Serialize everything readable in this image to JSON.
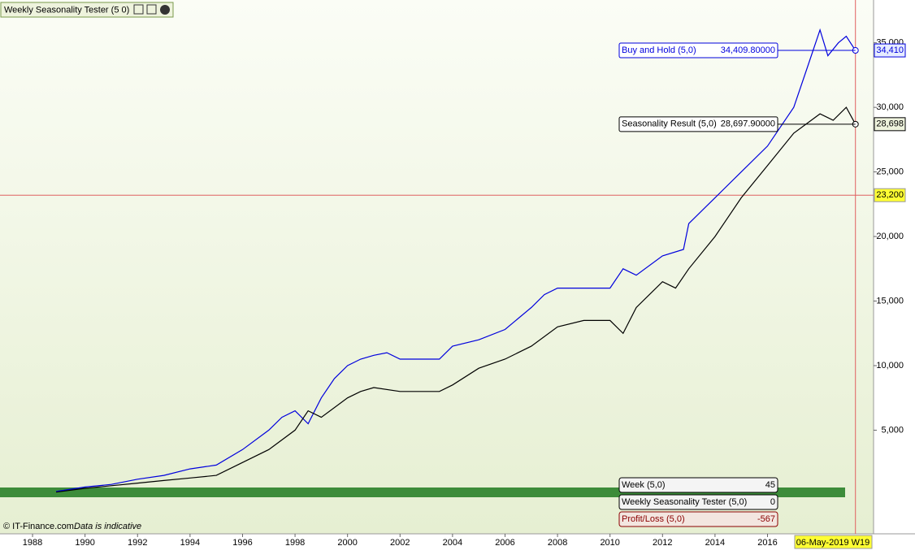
{
  "title": "Weekly Seasonality Tester (5 0)",
  "footer": {
    "copyright": "© IT-Finance.com",
    "note": "Data is indicative"
  },
  "chart_data": {
    "type": "line",
    "xlim": [
      1986.76,
      2020.04
    ],
    "ylim": [
      -2900,
      38000
    ],
    "xticks": [
      1988,
      1990,
      1992,
      1994,
      1996,
      1998,
      2000,
      2002,
      2004,
      2006,
      2008,
      2010,
      2012,
      2014,
      2016
    ],
    "yticks": [
      {
        "value": 5000,
        "label": "5,000"
      },
      {
        "value": 10000,
        "label": "10,000"
      },
      {
        "value": 15000,
        "label": "15,000"
      },
      {
        "value": 20000,
        "label": "20,000"
      },
      {
        "value": 25000,
        "label": "25,000"
      },
      {
        "value": 30000,
        "label": "30,000"
      },
      {
        "value": 35000,
        "label": "35,000"
      }
    ],
    "series": [
      {
        "name": "Buy and Hold (5,0)",
        "color": "#0000dd",
        "x": [
          1988.9,
          1990,
          1991,
          1992,
          1993,
          1994,
          1995,
          1996,
          1997,
          1997.5,
          1998,
          1998.5,
          1999,
          1999.5,
          2000,
          2000.5,
          2001,
          2001.5,
          2002,
          2003.5,
          2004,
          2005,
          2006,
          2007,
          2007.5,
          2008,
          2009,
          2010,
          2010.5,
          2011,
          2012,
          2012.8,
          2013,
          2014,
          2015,
          2016,
          2017,
          2017.5,
          2018,
          2018.3,
          2018.7,
          2019,
          2019.35
        ],
        "values": [
          250,
          600,
          800,
          1200,
          1500,
          2000,
          2300,
          3500,
          5000,
          6000,
          6500,
          5500,
          7500,
          9000,
          10000,
          10500,
          10800,
          11000,
          10500,
          10500,
          11500,
          12000,
          12800,
          14500,
          15500,
          16000,
          16000,
          16000,
          17500,
          17000,
          18500,
          19000,
          21000,
          23000,
          25000,
          27000,
          30000,
          33000,
          36000,
          34000,
          35000,
          35500,
          34409.8
        ],
        "readout": {
          "value": 34409.8,
          "label": "34,409.80000"
        },
        "axis_tag": {
          "value": 34410,
          "label": "34,410"
        }
      },
      {
        "name": "Seasonality Result (5,0)",
        "color": "#000000",
        "x": [
          1988.9,
          1990,
          1991,
          1992,
          1993,
          1994,
          1995,
          1996,
          1997,
          1998,
          1998.5,
          1999,
          2000,
          2000.5,
          2001,
          2002,
          2003.5,
          2004,
          2005,
          2006,
          2007,
          2008,
          2009,
          2010,
          2010.5,
          2011,
          2012,
          2012.5,
          2013,
          2014,
          2015,
          2016,
          2017,
          2018,
          2018.5,
          2019,
          2019.35
        ],
        "values": [
          200,
          500,
          700,
          900,
          1100,
          1300,
          1500,
          2500,
          3500,
          5000,
          6500,
          6000,
          7500,
          8000,
          8300,
          8000,
          8000,
          8500,
          9800,
          10500,
          11500,
          13000,
          13500,
          13500,
          12500,
          14500,
          16500,
          16000,
          17500,
          20000,
          23000,
          25500,
          28000,
          29500,
          29000,
          30000,
          28697.9
        ],
        "readout": {
          "value": 28697.9,
          "label": "28,697.90000"
        },
        "axis_tag": {
          "value": 28698,
          "label": "28,698"
        }
      }
    ],
    "crosshair": {
      "value": 23200,
      "label": "23,200"
    },
    "date_cursor": {
      "value": 2019.35,
      "label": "06-May-2019 W19"
    },
    "indicators": [
      {
        "name": "Week (5,0)",
        "value": 45
      },
      {
        "name": "Weekly Seasonality Tester (5,0)",
        "value": 0
      },
      {
        "name": "Profit/Loss (5,0)",
        "value": -567
      }
    ]
  }
}
